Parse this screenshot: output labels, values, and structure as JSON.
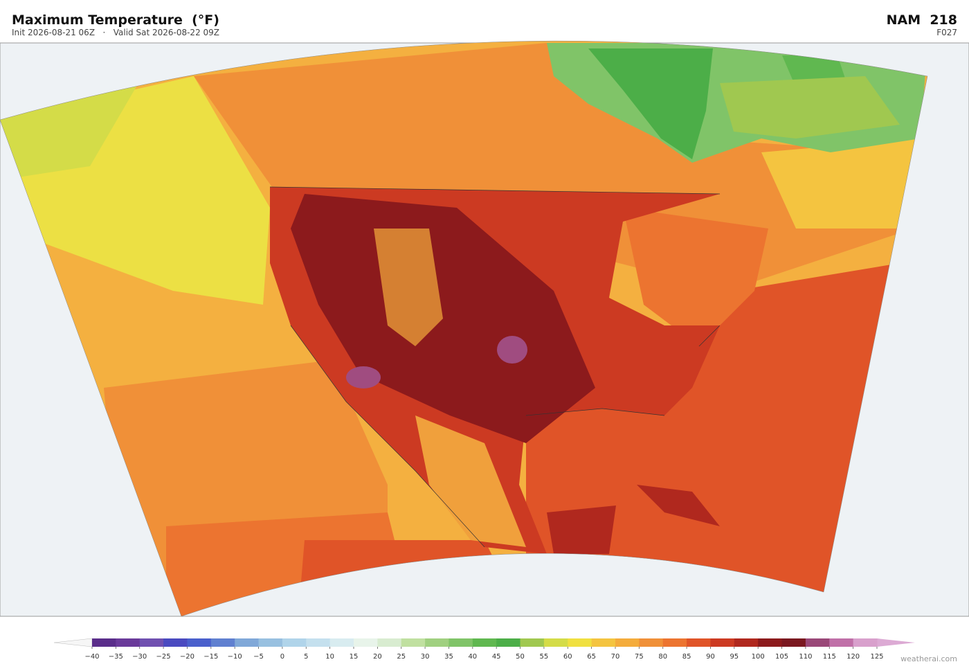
{
  "header": {
    "title": "Maximum Temperature  (°F)",
    "subtitle": "Init 2026-08-21 06Z   ·   Valid Sat 2026-08-22 09Z",
    "model": "NAM  218",
    "forecast": "F027"
  },
  "colorbar": {
    "ticks": [
      {
        "value": -40,
        "label": "−40"
      },
      {
        "value": -35,
        "label": "−35"
      },
      {
        "value": -30,
        "label": "−30"
      },
      {
        "value": -25,
        "label": "−25"
      },
      {
        "value": -20,
        "label": "−20"
      },
      {
        "value": -15,
        "label": "−15"
      },
      {
        "value": -10,
        "label": "−10"
      },
      {
        "value": -5,
        "label": "−5"
      },
      0,
      5,
      10,
      15,
      20,
      25,
      30,
      35,
      40,
      45,
      50,
      55,
      60,
      65,
      70,
      75,
      80,
      85,
      90,
      95,
      100,
      105,
      110,
      115,
      120,
      125
    ],
    "colors": [
      "#5a2d8a",
      "#6a3a9a",
      "#7050b0",
      "#4a4ac0",
      "#4a60cc",
      "#6080d0",
      "#80a8d8",
      "#98c0e0",
      "#b0d4ea",
      "#c4e0ee",
      "#d8ecf0",
      "#e8f4ea",
      "#d8ecd0",
      "#c0e0a0",
      "#a0d080",
      "#80c468",
      "#60b850",
      "#4cae48",
      "#a0c850",
      "#d4dc48",
      "#f0e040",
      "#f4c440",
      "#f4ac3c",
      "#f09038",
      "#ec7430",
      "#e05428",
      "#cc3a22",
      "#b0281e",
      "#8c1a1c",
      "#7a1820",
      "#9a4878",
      "#c070a8",
      "#d8a0cc"
    ],
    "under_color": "#f6f6f6",
    "over_color": "#dcaad4"
  },
  "credit": "weatherai.com"
}
